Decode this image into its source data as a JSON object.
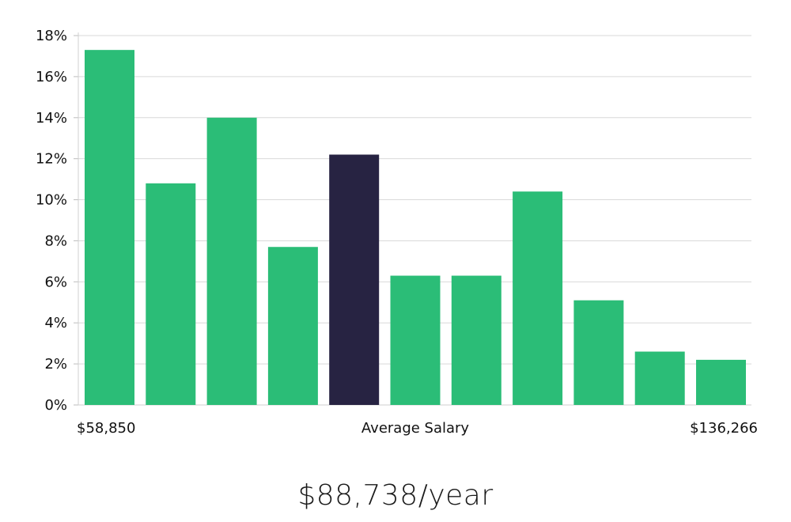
{
  "chart_data": {
    "type": "bar",
    "categories": [
      "1",
      "2",
      "3",
      "4",
      "5",
      "6",
      "7",
      "8",
      "9",
      "10",
      "11"
    ],
    "values": [
      17.3,
      10.8,
      14.0,
      7.7,
      12.2,
      6.3,
      6.3,
      10.4,
      5.1,
      2.6,
      2.2
    ],
    "highlight_index": 4,
    "ylim": [
      0,
      18
    ],
    "yticks": [
      0,
      2,
      4,
      6,
      8,
      10,
      12,
      14,
      16,
      18
    ],
    "ytick_labels": [
      "0%",
      "2%",
      "4%",
      "6%",
      "8%",
      "10%",
      "12%",
      "14%",
      "16%",
      "18%"
    ],
    "x_min_label": "$58,850",
    "x_center_label": "Average Salary",
    "x_max_label": "$136,266",
    "grid": true,
    "colors": {
      "bar": "#2bbd77",
      "highlight": "#272342",
      "grid": "#d9d9d9"
    }
  },
  "headline": "$88,738/year"
}
